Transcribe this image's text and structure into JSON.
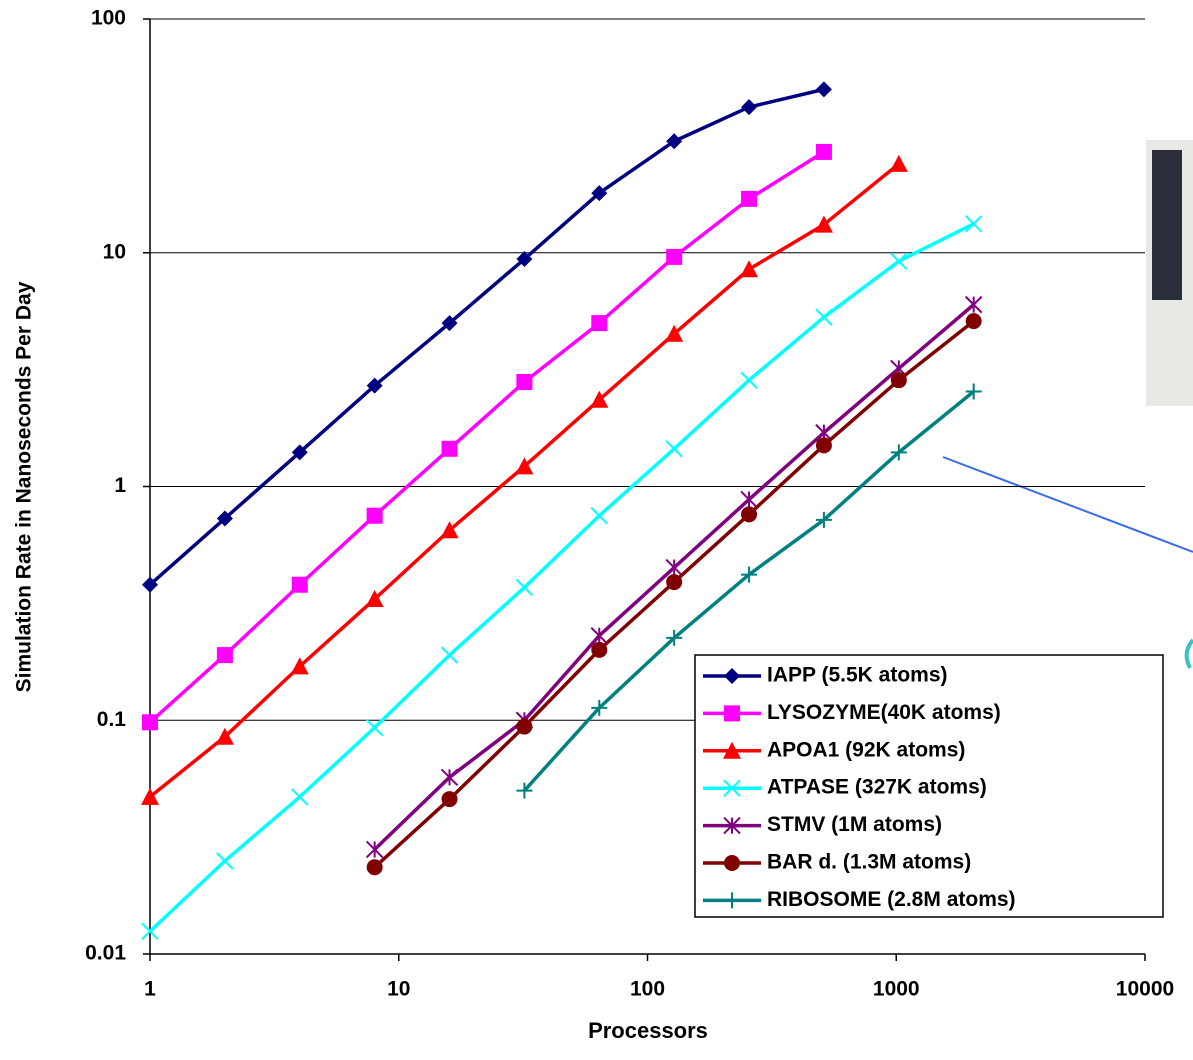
{
  "chart_data": {
    "type": "line",
    "x_label": "Processors",
    "y_label": "Simulation Rate in Nanoseconds Per Day",
    "xscale": "log",
    "yscale": "log",
    "grid": true,
    "xlim": [
      1,
      10000
    ],
    "xticks": [
      1,
      10,
      100,
      1000,
      10000
    ],
    "ylim": [
      0.01,
      100
    ],
    "yticks": [
      0.01,
      0.1,
      1,
      10,
      100
    ],
    "legend": "lower right",
    "series": [
      {
        "name": "IAPP (5.5K atoms)",
        "color": "#000080",
        "marker": "diamond",
        "x": [
          1,
          2,
          4,
          8,
          16,
          32,
          64,
          128,
          256,
          512
        ],
        "values": [
          0.38,
          0.73,
          1.4,
          2.7,
          5.0,
          9.4,
          18,
          30,
          42,
          50
        ]
      },
      {
        "name": "LYSOZYME(40K atoms)",
        "color": "#ff00ff",
        "marker": "square",
        "x": [
          1,
          2,
          4,
          8,
          16,
          32,
          64,
          128,
          256,
          512
        ],
        "values": [
          0.098,
          0.19,
          0.38,
          0.75,
          1.45,
          2.8,
          5.0,
          9.6,
          17,
          27
        ]
      },
      {
        "name": "APOA1 (92K atoms)",
        "color": "#ff0000",
        "marker": "triangle",
        "x": [
          1,
          2,
          4,
          8,
          16,
          32,
          64,
          128,
          256,
          512,
          1024
        ],
        "values": [
          0.047,
          0.085,
          0.17,
          0.33,
          0.65,
          1.22,
          2.35,
          4.5,
          8.5,
          13.2,
          24
        ]
      },
      {
        "name": "ATPASE (327K atoms)",
        "color": "#00ffff",
        "marker": "x",
        "x": [
          1,
          2,
          4,
          8,
          16,
          32,
          64,
          128,
          256,
          512,
          1024,
          2048
        ],
        "values": [
          0.0125,
          0.025,
          0.047,
          0.093,
          0.19,
          0.37,
          0.75,
          1.45,
          2.85,
          5.3,
          9.2,
          13.3
        ]
      },
      {
        "name": "STMV (1M atoms)",
        "color": "#800080",
        "marker": "star",
        "x": [
          8,
          16,
          32,
          64,
          128,
          256,
          512,
          1024,
          2048
        ],
        "values": [
          0.028,
          0.057,
          0.1,
          0.23,
          0.45,
          0.88,
          1.7,
          3.2,
          6.0
        ]
      },
      {
        "name": "BAR d. (1.3M atoms)",
        "color": "#800000",
        "marker": "circle",
        "x": [
          8,
          16,
          32,
          64,
          128,
          256,
          512,
          1024,
          2048
        ],
        "values": [
          0.0235,
          0.046,
          0.094,
          0.2,
          0.39,
          0.76,
          1.5,
          2.85,
          5.1
        ]
      },
      {
        "name": "RIBOSOME (2.8M atoms)",
        "color": "#008080",
        "marker": "plus",
        "x": [
          32,
          64,
          128,
          256,
          512,
          1024,
          2048
        ],
        "values": [
          0.05,
          0.113,
          0.225,
          0.42,
          0.72,
          1.4,
          2.55
        ]
      }
    ]
  }
}
